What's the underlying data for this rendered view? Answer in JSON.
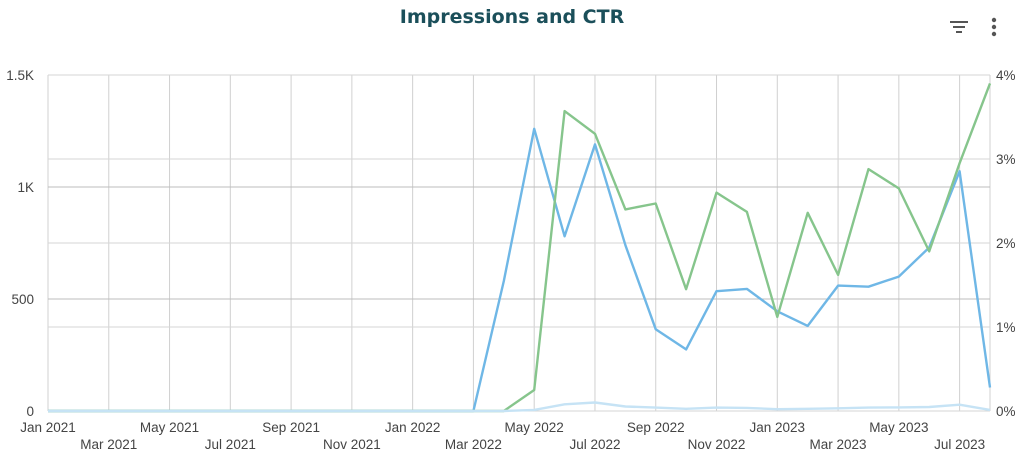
{
  "title": "Impressions and CTR",
  "toolbar": {
    "filter_icon": "filter-icon",
    "more_icon": "more-vert-icon"
  },
  "chart_data": {
    "type": "line",
    "title": "Impressions and CTR",
    "x": [
      "2021-01",
      "2021-02",
      "2021-03",
      "2021-04",
      "2021-05",
      "2021-06",
      "2021-07",
      "2021-08",
      "2021-09",
      "2021-10",
      "2021-11",
      "2021-12",
      "2022-01",
      "2022-02",
      "2022-03",
      "2022-04",
      "2022-05",
      "2022-06",
      "2022-07",
      "2022-08",
      "2022-09",
      "2022-10",
      "2022-11",
      "2022-12",
      "2023-01",
      "2023-02",
      "2023-03",
      "2023-04",
      "2023-05",
      "2023-06",
      "2023-07",
      "2023-08"
    ],
    "x_tick_labels": [
      "Jan 2021",
      "Mar 2021",
      "May 2021",
      "Jul 2021",
      "Sep 2021",
      "Nov 2021",
      "Jan 2022",
      "Mar 2022",
      "May 2022",
      "Jul 2022",
      "Sep 2022",
      "Nov 2022",
      "Jan 2023",
      "Mar 2023",
      "May 2023",
      "Jul 2023"
    ],
    "y_left": {
      "ylim": [
        0,
        1500
      ],
      "ticks": [
        0,
        500,
        1000,
        1500
      ],
      "tick_labels": [
        "0",
        "500",
        "1K",
        "1.5K"
      ]
    },
    "y_right": {
      "ylim": [
        0,
        4
      ],
      "ticks": [
        0,
        1,
        2,
        3,
        4
      ],
      "tick_labels": [
        "0%",
        "1%",
        "2%",
        "3%",
        "4%"
      ]
    },
    "grid": true,
    "series": [
      {
        "axis": "left",
        "color": "#6fb7e6",
        "values": [
          0,
          0,
          0,
          0,
          0,
          0,
          0,
          0,
          0,
          0,
          0,
          0,
          0,
          0,
          0,
          580,
          1260,
          780,
          1190,
          740,
          365,
          275,
          535,
          545,
          445,
          380,
          560,
          555,
          600,
          730,
          1070,
          105
        ]
      },
      {
        "axis": "right",
        "color": "#86c58c",
        "values": [
          0,
          0,
          0,
          0,
          0,
          0,
          0,
          0,
          0,
          0,
          0,
          0,
          0,
          0,
          0,
          0,
          0.25,
          3.57,
          3.3,
          2.4,
          2.47,
          1.45,
          2.6,
          2.37,
          1.12,
          2.36,
          1.62,
          2.88,
          2.65,
          1.9,
          2.95,
          3.9
        ]
      },
      {
        "axis": "left",
        "color": "#c6e3f5",
        "values": [
          0,
          0,
          0,
          0,
          0,
          0,
          0,
          0,
          0,
          0,
          0,
          0,
          0,
          0,
          0,
          0,
          5,
          30,
          38,
          20,
          15,
          10,
          15,
          14,
          8,
          10,
          12,
          15,
          16,
          18,
          28,
          5
        ]
      }
    ]
  }
}
